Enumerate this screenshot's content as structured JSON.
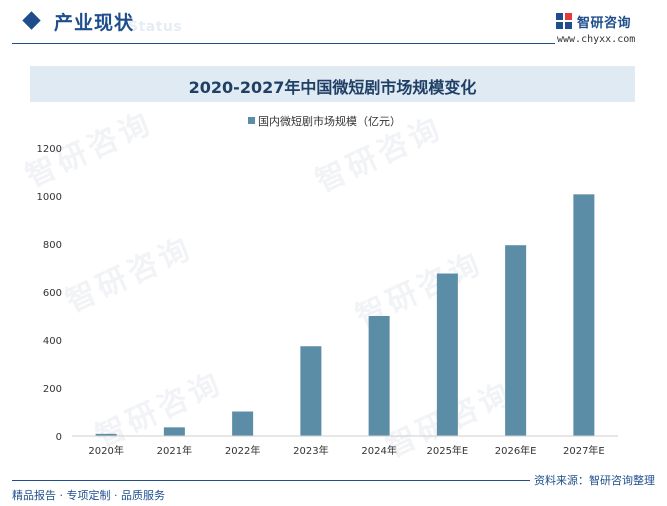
{
  "header": {
    "section_title": "产业现状",
    "section_title_en": "Status"
  },
  "brand": {
    "name": "智研咨询",
    "url": "www.chyxx.com",
    "primary_color": "#1f4e8c"
  },
  "watermark": {
    "text": "智研咨询"
  },
  "footer": {
    "left_text": "精品报告 · 专项定制 · 品质服务",
    "source_text": "资料来源：智研咨询整理"
  },
  "chart_data": {
    "type": "bar",
    "title": "2020-2027年中国微短剧市场规模变化",
    "categories": [
      "2020年",
      "2021年",
      "2022年",
      "2023年",
      "2024年",
      "2025年E",
      "2026年E",
      "2027年E"
    ],
    "series": [
      {
        "name": "国内微短剧市场规模（亿元）",
        "values": [
          9,
          36,
          102,
          374,
          500,
          677,
          795,
          1007
        ],
        "color": "#5b8ea6"
      }
    ],
    "ylim": [
      0,
      1200
    ],
    "yticks": [
      0,
      200,
      400,
      600,
      800,
      1000,
      1200
    ],
    "grid": false,
    "legend_position": "top-center"
  }
}
